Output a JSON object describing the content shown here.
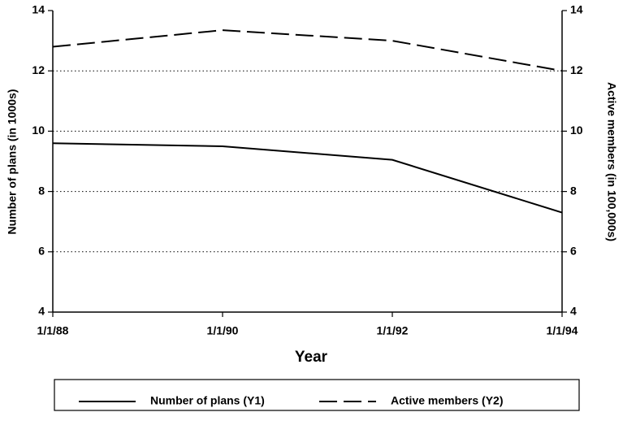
{
  "chart_data": {
    "type": "line",
    "x_label": "Year",
    "y_label": "Number of plans (in 1000s)",
    "y2_label": "Active members (in 100,000s)",
    "categories": [
      "1/1/88",
      "1/1/90",
      "1/1/92",
      "1/1/94"
    ],
    "series": [
      {
        "name": "Number of plans (Y1)",
        "color": "#000000",
        "linestyle": "solid",
        "axis": "y",
        "values": [
          9.6,
          9.5,
          9.05,
          7.3
        ]
      },
      {
        "name": "Active members (Y2)",
        "color": "#000000",
        "linestyle": "dashed",
        "axis": "y2",
        "values": [
          12.8,
          13.35,
          13.0,
          12.0
        ]
      }
    ],
    "ylim": [
      4,
      14
    ],
    "yticks": [
      4,
      6,
      8,
      10,
      12,
      14
    ],
    "y2lim": [
      4,
      14
    ],
    "y2ticks": [
      4,
      6,
      8,
      10,
      12,
      14
    ],
    "grid": true,
    "legend": "bottom"
  }
}
